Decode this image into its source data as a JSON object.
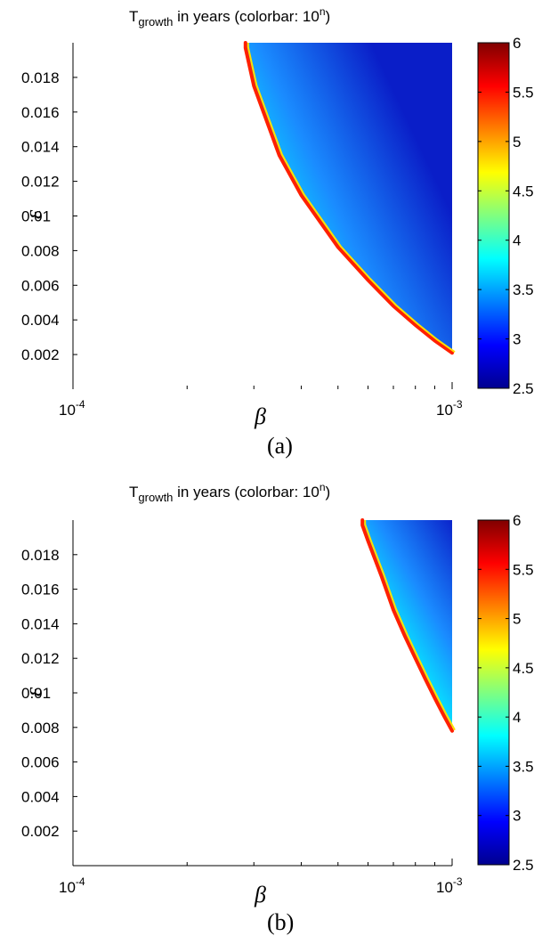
{
  "chart_data": [
    {
      "type": "heatmap",
      "title_main": "T",
      "title_sub": "growth",
      "title_rest": " in years (colorbar: 10",
      "title_sup": "n",
      "title_close": ")",
      "xlabel": "β",
      "ylabel": "ε",
      "panel_label": "(a)",
      "x_scale": "log",
      "xlim": [
        0.0001,
        0.001
      ],
      "ylim": [
        0,
        0.02
      ],
      "x_ticks": [
        {
          "base": "10",
          "exp": "-4",
          "value": 0.0001
        },
        {
          "base": "10",
          "exp": "-3",
          "value": 0.001
        }
      ],
      "y_ticks": [
        "0.002",
        "0.004",
        "0.006",
        "0.008",
        "0.01",
        "0.012",
        "0.014",
        "0.016",
        "0.018"
      ],
      "colorbar": {
        "min": 2.5,
        "max": 6,
        "ticks": [
          "2.5",
          "3",
          "3.5",
          "4",
          "4.5",
          "5",
          "5.5",
          "6"
        ],
        "colormap": "jet"
      },
      "boundary": [
        {
          "x": 0.000285,
          "y": 0.0197
        },
        {
          "x": 0.0003,
          "y": 0.0175
        },
        {
          "x": 0.00035,
          "y": 0.0135
        },
        {
          "x": 0.0004,
          "y": 0.0112
        },
        {
          "x": 0.0005,
          "y": 0.0082
        },
        {
          "x": 0.0006,
          "y": 0.0063
        },
        {
          "x": 0.0007,
          "y": 0.0048
        },
        {
          "x": 0.0008,
          "y": 0.0037
        },
        {
          "x": 0.0009,
          "y": 0.0028
        },
        {
          "x": 0.001,
          "y": 0.0021
        }
      ],
      "values": [
        {
          "beta": 0.001,
          "epsilon": 0.02,
          "log10_T": 2.55
        },
        {
          "beta": 0.001,
          "epsilon": 0.0022,
          "log10_T": 3.6
        },
        {
          "beta": 0.00029,
          "epsilon": 0.0195,
          "log10_T": 3.9
        },
        {
          "note_value": "boundary",
          "log10_T": 6
        }
      ]
    },
    {
      "type": "heatmap",
      "title_main": "T",
      "title_sub": "growth",
      "title_rest": " in years (colorbar: 10",
      "title_sup": "n",
      "title_close": ")",
      "xlabel": "β",
      "ylabel": "ε",
      "panel_label": "(b)",
      "x_scale": "log",
      "xlim": [
        0.0001,
        0.001
      ],
      "ylim": [
        0,
        0.02
      ],
      "x_ticks": [
        {
          "base": "10",
          "exp": "-4",
          "value": 0.0001
        },
        {
          "base": "10",
          "exp": "-3",
          "value": 0.001
        }
      ],
      "y_ticks": [
        "0.002",
        "0.004",
        "0.006",
        "0.008",
        "0.01",
        "0.012",
        "0.014",
        "0.016",
        "0.018"
      ],
      "colorbar": {
        "min": 2.5,
        "max": 6,
        "ticks": [
          "2.5",
          "3",
          "3.5",
          "4",
          "4.5",
          "5",
          "5.5",
          "6"
        ],
        "colormap": "jet"
      },
      "boundary": [
        {
          "x": 0.00058,
          "y": 0.0197
        },
        {
          "x": 0.0006,
          "y": 0.0188
        },
        {
          "x": 0.00065,
          "y": 0.0168
        },
        {
          "x": 0.0007,
          "y": 0.0148
        },
        {
          "x": 0.00075,
          "y": 0.0133
        },
        {
          "x": 0.0008,
          "y": 0.012
        },
        {
          "x": 0.00085,
          "y": 0.0108
        },
        {
          "x": 0.0009,
          "y": 0.0097
        },
        {
          "x": 0.00095,
          "y": 0.0087
        },
        {
          "x": 0.001,
          "y": 0.0078
        }
      ],
      "values": [
        {
          "beta": 0.001,
          "epsilon": 0.02,
          "log10_T": 2.6
        },
        {
          "beta": 0.001,
          "epsilon": 0.0081,
          "log10_T": 3.8
        },
        {
          "beta": 0.00059,
          "epsilon": 0.0195,
          "log10_T": 3.9
        },
        {
          "note_value": "boundary",
          "log10_T": 6
        }
      ]
    }
  ]
}
